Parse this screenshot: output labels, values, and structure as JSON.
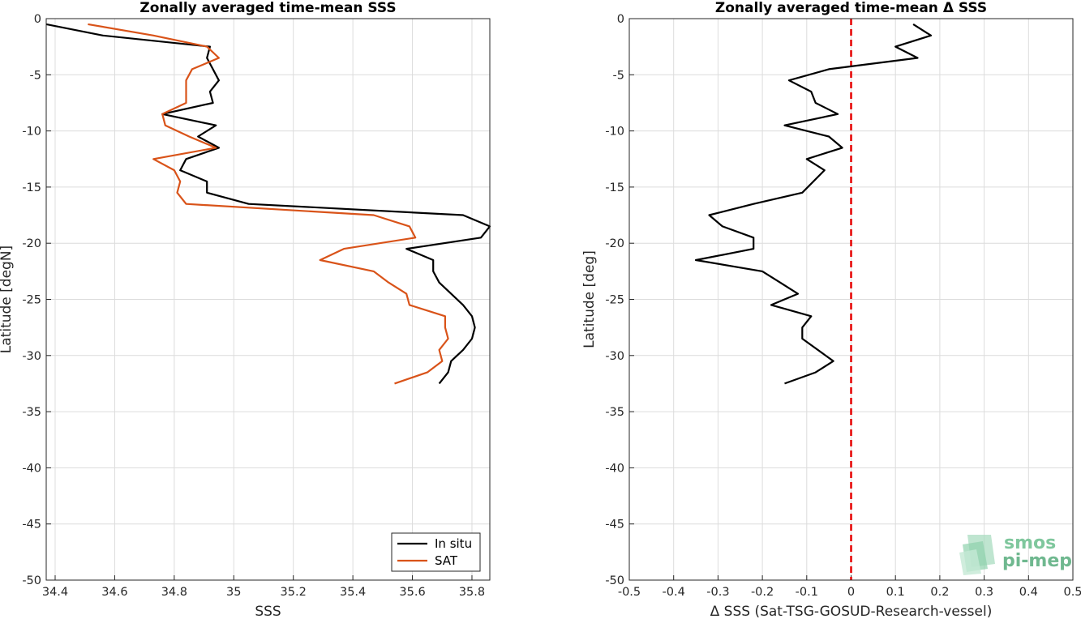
{
  "chart_data": [
    {
      "type": "line",
      "title": "Zonally averaged time-mean SSS",
      "xlabel": "SSS",
      "ylabel": "Latitude [degN]",
      "xlim": [
        34.37,
        35.86
      ],
      "ylim": [
        -50,
        0
      ],
      "xticks": [
        "34.4",
        "34.6",
        "34.8",
        "35",
        "35.2",
        "35.4",
        "35.6",
        "35.8"
      ],
      "yticks": [
        "0",
        "-5",
        "-10",
        "-15",
        "-20",
        "-25",
        "-30",
        "-35",
        "-40",
        "-45",
        "-50"
      ],
      "grid": true,
      "legend": {
        "location": "bottom-right",
        "entries": [
          "In situ",
          "SAT"
        ]
      },
      "series": [
        {
          "name": "In situ",
          "color": "#000000",
          "x": [
            34.37,
            34.56,
            34.92,
            34.91,
            34.95,
            34.92,
            34.93,
            34.76,
            34.94,
            34.88,
            34.95,
            34.84,
            34.82,
            34.91,
            34.91,
            35.05,
            35.77,
            35.86,
            35.83,
            35.58,
            35.67,
            35.67,
            35.69,
            35.73,
            35.77,
            35.8,
            35.81,
            35.8,
            35.77,
            35.73,
            35.72,
            35.69
          ],
          "y": [
            -0.5,
            -1.5,
            -2.5,
            -3.5,
            -5.5,
            -6.5,
            -7.5,
            -8.5,
            -9.5,
            -10.5,
            -11.5,
            -12.5,
            -13.5,
            -14.5,
            -15.5,
            -16.5,
            -17.5,
            -18.5,
            -19.5,
            -20.5,
            -21.5,
            -22.5,
            -23.5,
            -24.5,
            -25.5,
            -26.5,
            -27.5,
            -28.5,
            -29.5,
            -30.5,
            -31.5,
            -32.5
          ]
        },
        {
          "name": "SAT",
          "color": "#d95319",
          "x": [
            34.51,
            34.73,
            34.91,
            34.95,
            34.86,
            34.84,
            34.84,
            34.84,
            34.76,
            34.77,
            34.85,
            34.94,
            34.73,
            34.8,
            34.82,
            34.81,
            34.84,
            35.47,
            35.59,
            35.61,
            35.37,
            35.29,
            35.47,
            35.52,
            35.58,
            35.59,
            35.71,
            35.71,
            35.72,
            35.69,
            35.7,
            35.65,
            35.54
          ],
          "y": [
            -0.5,
            -1.5,
            -2.5,
            -3.5,
            -4.5,
            -5.5,
            -6.5,
            -7.5,
            -8.5,
            -9.5,
            -10.5,
            -11.5,
            -12.5,
            -13.5,
            -14.5,
            -15.5,
            -16.5,
            -17.5,
            -18.5,
            -19.5,
            -20.5,
            -21.5,
            -22.5,
            -23.5,
            -24.5,
            -25.5,
            -26.5,
            -27.5,
            -28.5,
            -29.5,
            -30.5,
            -31.5,
            -32.5
          ]
        }
      ]
    },
    {
      "type": "line",
      "title": "Zonally averaged time-mean Δ SSS",
      "xlabel": "Δ SSS (Sat-TSG-GOSUD-Research-vessel)",
      "ylabel": "Latitude [deg]",
      "xlim": [
        -0.5,
        0.5
      ],
      "ylim": [
        -50,
        0
      ],
      "xticks": [
        "-0.5",
        "-0.4",
        "-0.3",
        "-0.2",
        "-0.1",
        "0",
        "0.1",
        "0.2",
        "0.3",
        "0.4",
        "0.5"
      ],
      "yticks": [
        "0",
        "-5",
        "-10",
        "-15",
        "-20",
        "-25",
        "-30",
        "-35",
        "-40",
        "-45",
        "-50"
      ],
      "grid": true,
      "reference_line": {
        "x": 0,
        "color": "#e60000",
        "style": "dashed"
      },
      "series": [
        {
          "color": "#000000",
          "x": [
            0.14,
            0.18,
            0.1,
            0.15,
            -0.05,
            -0.14,
            -0.09,
            -0.08,
            -0.03,
            -0.15,
            -0.05,
            -0.02,
            -0.1,
            -0.06,
            -0.11,
            -0.22,
            -0.32,
            -0.29,
            -0.22,
            -0.22,
            -0.35,
            -0.2,
            -0.16,
            -0.12,
            -0.18,
            -0.09,
            -0.11,
            -0.11,
            -0.04,
            -0.08,
            -0.15
          ],
          "y": [
            -0.5,
            -1.5,
            -2.5,
            -3.5,
            -4.5,
            -5.5,
            -6.5,
            -7.5,
            -8.5,
            -9.5,
            -10.5,
            -11.5,
            -12.5,
            -13.5,
            -15.5,
            -16.5,
            -17.5,
            -18.5,
            -19.5,
            -20.5,
            -21.5,
            -22.5,
            -23.5,
            -24.5,
            -25.5,
            -26.5,
            -27.5,
            -28.5,
            -30.5,
            -31.5,
            -32.5
          ]
        }
      ]
    }
  ],
  "logo": {
    "line1": "smos",
    "line2": "pi-mep"
  }
}
